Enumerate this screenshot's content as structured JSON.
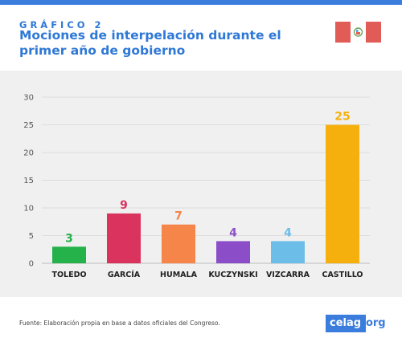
{
  "header": {
    "kicker": "GRÁFICO 2",
    "title": "Mociones de interpelación durante el primer año de gobierno"
  },
  "footer": {
    "source": "Fuente: Elaboración propia en base a datos oficiales del Congreso.",
    "brand_main": "celag",
    "brand_tld": ".org"
  },
  "colors": {
    "accent": "#3b7ddd",
    "flag_red": "#e25c57"
  },
  "chart_data": {
    "type": "bar",
    "title": "Mociones de interpelación durante el primer año de gobierno",
    "xlabel": "",
    "ylabel": "",
    "categories": [
      "TOLEDO",
      "GARCÍA",
      "HUMALA",
      "KUCZYNSKI",
      "VIZCARRA",
      "CASTILLO"
    ],
    "values": [
      3,
      9,
      7,
      4,
      4,
      25
    ],
    "colors": [
      "#25b24b",
      "#d9335e",
      "#f58549",
      "#8c4dc8",
      "#6cbde8",
      "#f5b00e"
    ],
    "ylim": [
      0,
      30
    ],
    "yticks": [
      0,
      5,
      10,
      15,
      20,
      25,
      30
    ],
    "grid": true,
    "legend": "none"
  }
}
